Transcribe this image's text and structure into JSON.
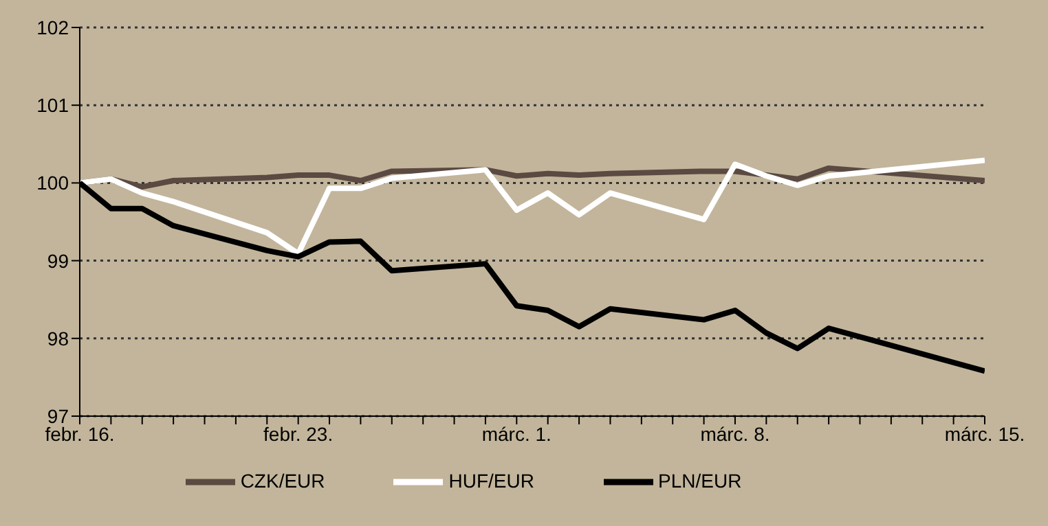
{
  "chart_data": {
    "type": "line",
    "categories": [
      "febr. 16.",
      null,
      null,
      null,
      null,
      null,
      null,
      "febr. 23.",
      null,
      null,
      null,
      null,
      null,
      null,
      "márc. 1.",
      null,
      null,
      null,
      null,
      null,
      null,
      "márc. 8.",
      null,
      null,
      null,
      null,
      null,
      null,
      null,
      "márc. 15."
    ],
    "series": [
      {
        "name": "CZK/EUR",
        "color": "#5a4a42",
        "values": [
          100.0,
          100.05,
          99.95,
          100.03,
          null,
          null,
          100.07,
          100.1,
          100.1,
          100.03,
          100.15,
          null,
          null,
          100.17,
          100.09,
          100.12,
          100.1,
          100.12,
          null,
          null,
          100.15,
          100.15,
          100.1,
          100.05,
          100.19,
          null,
          null,
          null,
          null,
          100.03
        ]
      },
      {
        "name": "HUF/EUR",
        "color": "#ffffff",
        "values": [
          100.0,
          100.05,
          99.87,
          99.76,
          null,
          null,
          99.36,
          99.09,
          99.93,
          99.93,
          100.06,
          null,
          null,
          100.17,
          99.65,
          99.87,
          99.59,
          99.87,
          null,
          null,
          99.53,
          100.24,
          100.09,
          99.97,
          100.09,
          null,
          null,
          null,
          null,
          100.29
        ]
      },
      {
        "name": "PLN/EUR",
        "color": "#000000",
        "values": [
          100.0,
          99.67,
          99.67,
          99.45,
          null,
          null,
          99.13,
          99.05,
          99.24,
          99.25,
          98.87,
          null,
          null,
          98.96,
          98.42,
          98.36,
          98.15,
          98.38,
          null,
          null,
          98.24,
          98.36,
          98.07,
          97.87,
          98.13,
          null,
          null,
          null,
          null,
          97.58
        ]
      }
    ],
    "ylim": [
      97,
      102
    ],
    "yticks": [
      97,
      98,
      99,
      100,
      101,
      102
    ],
    "grid": "y",
    "legend": "bottom",
    "line_style": "solid",
    "marker": "none"
  }
}
